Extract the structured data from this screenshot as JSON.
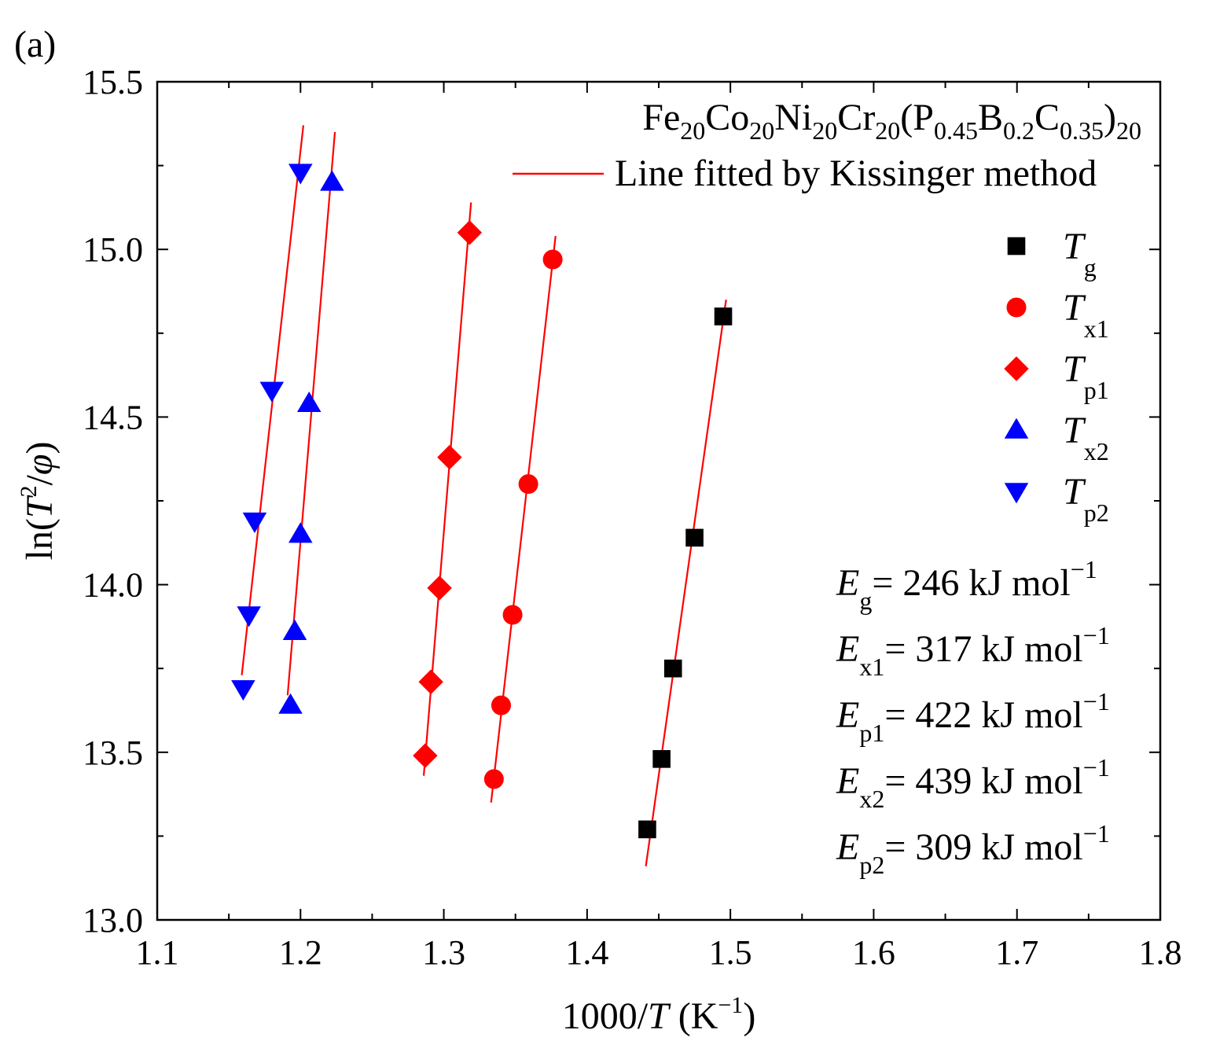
{
  "panel_label": "(a)",
  "colors": {
    "black": "#000000",
    "red": "#ff0000",
    "blue": "#0000ff",
    "fit_line": "#ff0000"
  },
  "chart_data": {
    "type": "scatter",
    "title_formula": {
      "parts": [
        {
          "base": "Fe",
          "sub": "20"
        },
        {
          "base": "Co",
          "sub": "20"
        },
        {
          "base": "Ni",
          "sub": "20"
        },
        {
          "base": "Cr",
          "sub": "20"
        },
        {
          "base": "(P",
          "sub": "0.45"
        },
        {
          "base": "B",
          "sub": "0.2"
        },
        {
          "base": "C",
          "sub": "0.35"
        },
        {
          "base": ")",
          "sub": "20"
        }
      ]
    },
    "fit_legend_label": "Line fitted by Kissinger method",
    "xlabel": {
      "prefix": "1000/",
      "italic": "T",
      "unit_open": " (K",
      "sup": "−1",
      "unit_close": ")"
    },
    "ylabel": {
      "prefix": "ln(",
      "italic": "T",
      "sup": "2",
      "slash": "/",
      "italic2": "φ",
      "close": ")"
    },
    "xlim": [
      1.1,
      1.8
    ],
    "ylim": [
      13.0,
      15.5
    ],
    "xticks": [
      "1.1",
      "1.2",
      "1.3",
      "1.4",
      "1.5",
      "1.6",
      "1.7",
      "1.8"
    ],
    "yticks": [
      "13.0",
      "13.5",
      "14.0",
      "14.5",
      "15.0",
      "15.5"
    ],
    "series": [
      {
        "key": "Tg",
        "name": "T",
        "sub": "g",
        "marker": "square",
        "color": "#000000",
        "x": [
          1.442,
          1.452,
          1.46,
          1.475,
          1.495
        ],
        "y": [
          13.27,
          13.48,
          13.75,
          14.14,
          14.8
        ],
        "fit": {
          "x": [
            1.441,
            1.497
          ],
          "y": [
            13.16,
            14.85
          ]
        }
      },
      {
        "key": "Tx1",
        "name": "T",
        "sub": "x1",
        "marker": "circle",
        "color": "#ff0000",
        "x": [
          1.335,
          1.34,
          1.348,
          1.359,
          1.376
        ],
        "y": [
          13.42,
          13.64,
          13.91,
          14.3,
          14.97
        ],
        "fit": {
          "x": [
            1.333,
            1.378
          ],
          "y": [
            13.35,
            15.04
          ]
        }
      },
      {
        "key": "Tp1",
        "name": "T",
        "sub": "p1",
        "marker": "diamond",
        "color": "#ff0000",
        "x": [
          1.287,
          1.291,
          1.297,
          1.304,
          1.318
        ],
        "y": [
          13.49,
          13.71,
          13.99,
          14.38,
          15.05
        ],
        "fit": {
          "x": [
            1.286,
            1.319
          ],
          "y": [
            13.43,
            15.14
          ]
        }
      },
      {
        "key": "Tx2",
        "name": "T",
        "sub": "x2",
        "marker": "triangle",
        "color": "#0000ff",
        "x": [
          1.193,
          1.196,
          1.2,
          1.206,
          1.222
        ],
        "y": [
          13.64,
          13.86,
          14.15,
          14.54,
          15.2
        ],
        "fit": {
          "x": [
            1.191,
            1.224
          ],
          "y": [
            13.67,
            15.35
          ]
        }
      },
      {
        "key": "Tp2",
        "name": "T",
        "sub": "p2",
        "marker": "triangle-down",
        "color": "#0000ff",
        "x": [
          1.16,
          1.164,
          1.168,
          1.18,
          1.2
        ],
        "y": [
          13.69,
          13.91,
          14.19,
          14.58,
          15.23
        ],
        "fit": {
          "x": [
            1.159,
            1.202
          ],
          "y": [
            13.73,
            15.37
          ]
        }
      }
    ],
    "energies": [
      {
        "symbol": "E",
        "sub": "g",
        "text": "= 246 kJ mol",
        "sup": "−1"
      },
      {
        "symbol": "E",
        "sub": "x1",
        "text": "= 317 kJ mol",
        "sup": "−1"
      },
      {
        "symbol": "E",
        "sub": "p1",
        "text": "= 422 kJ mol",
        "sup": "−1"
      },
      {
        "symbol": "E",
        "sub": "x2",
        "text": "= 439 kJ mol",
        "sup": "−1"
      },
      {
        "symbol": "E",
        "sub": "p2",
        "text": "= 309 kJ mol",
        "sup": "−1"
      }
    ]
  }
}
